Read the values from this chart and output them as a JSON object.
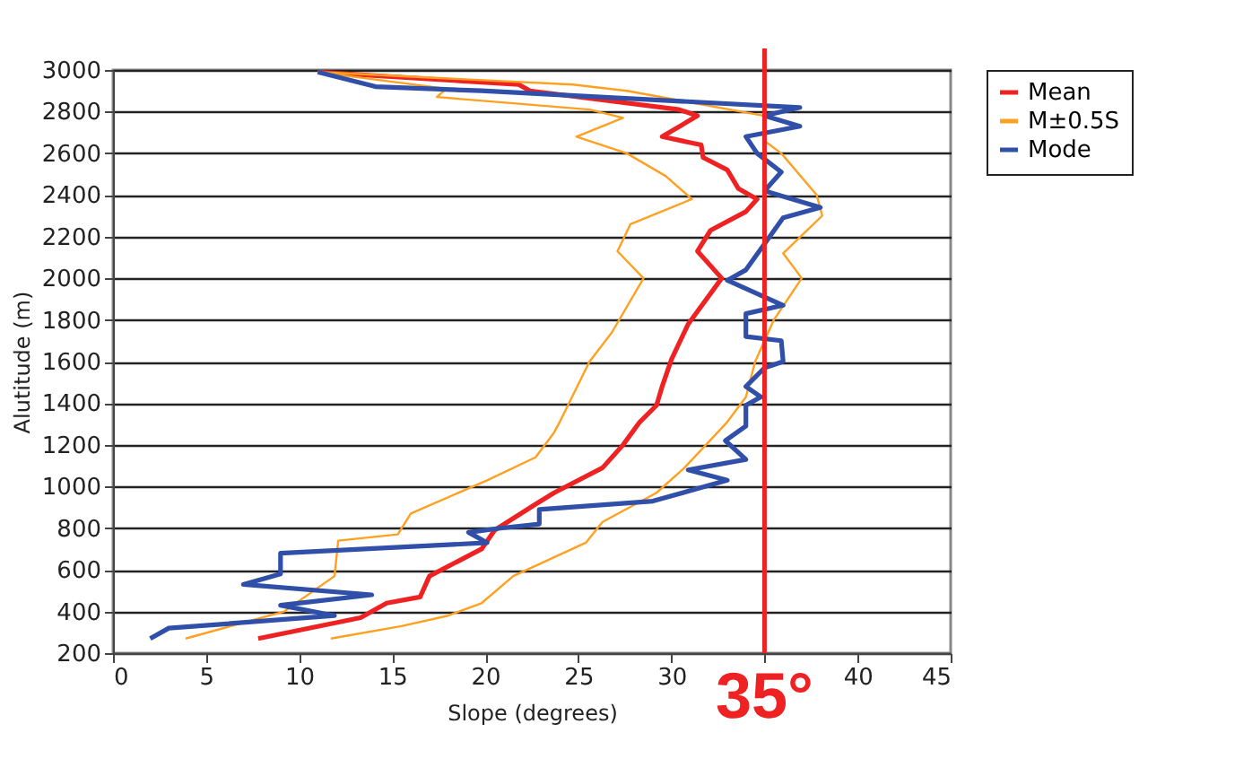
{
  "chart_data": {
    "type": "line",
    "xlabel": "Slope (degrees)",
    "ylabel": "Alutitude (m)",
    "xlim": [
      0,
      45
    ],
    "xticks": [
      0,
      5,
      10,
      15,
      20,
      25,
      30,
      {
        "value": 35,
        "label": null
      },
      40,
      45
    ],
    "ylim": [
      200,
      3000
    ],
    "yticks": [
      200,
      400,
      600,
      800,
      1000,
      1200,
      1400,
      1600,
      1800,
      2000,
      2200,
      2400,
      2600,
      2800,
      3000
    ],
    "grid": "y",
    "legend": "right",
    "marker": "none",
    "line_style": "solid",
    "ref_lines": [
      {
        "axis": "x",
        "value": 35,
        "label": "35°",
        "color": "#ee2222"
      }
    ],
    "series": [
      {
        "name": "Mean",
        "color": "#ee2222",
        "x": [
          7.8,
          13.3,
          14.7,
          16.5,
          17.0,
          19.8,
          20.5,
          22.7,
          23.7,
          26.3,
          27.4,
          28.3,
          29.2,
          29.5,
          30.0,
          30.9,
          32.7,
          31.4,
          32.1,
          34.0,
          34.6,
          33.6,
          33.0,
          31.7,
          31.6,
          29.5,
          31.4,
          30.4,
          22.4,
          21.8,
          11.0
        ],
        "values": [
          270,
          370,
          440,
          470,
          570,
          700,
          790,
          915,
          970,
          1090,
          1200,
          1310,
          1390,
          1480,
          1610,
          1780,
          2000,
          2130,
          2230,
          2320,
          2380,
          2430,
          2520,
          2580,
          2640,
          2680,
          2780,
          2810,
          2900,
          2930,
          2990
        ]
      },
      {
        "name": "M±0.5S",
        "color": "#ffa020",
        "x": [
          11.7,
          15.5,
          18.0,
          19.8,
          21.5,
          25.4,
          26.3,
          29.2,
          30.7,
          33.0,
          34.0,
          34.5,
          35.5,
          37.0,
          36.0,
          38.1,
          37.8,
          35.9,
          35.0,
          35.0,
          27.6,
          24.7,
          11.0
        ],
        "values": [
          270,
          330,
          380,
          440,
          570,
          730,
          830,
          970,
          1090,
          1310,
          1430,
          1600,
          1800,
          2000,
          2120,
          2300,
          2400,
          2600,
          2660,
          2780,
          2900,
          2930,
          2990
        ]
      },
      {
        "color": "#ffa020",
        "x": [
          3.9,
          9.2,
          11.9,
          12.1,
          15.3,
          16.0,
          20.1,
          22.7,
          23.7,
          24.0,
          25.6,
          26.8,
          28.5,
          27.1,
          27.8,
          31.1,
          29.7,
          27.6,
          24.9,
          27.4,
          25.6,
          17.4,
          17.9,
          11.0
        ],
        "values": [
          270,
          400,
          570,
          740,
          770,
          870,
          1030,
          1140,
          1260,
          1310,
          1600,
          1740,
          2000,
          2130,
          2260,
          2380,
          2490,
          2600,
          2680,
          2770,
          2810,
          2870,
          2910,
          2990
        ]
      },
      {
        "name": "Mode",
        "color": "#2f4fa8",
        "x": [
          2.0,
          3.0,
          11.9,
          9.0,
          13.9,
          7.0,
          9.0,
          9.0,
          20.1,
          19.1,
          20.8,
          22.9,
          22.9,
          29.0,
          33.0,
          30.9,
          34.0,
          32.9,
          34.0,
          34.0,
          34.8,
          34.0,
          35.0,
          36.0,
          35.9,
          34.0,
          34.0,
          36.0,
          33.0,
          34.0,
          36.0,
          38.0,
          35.0,
          35.9,
          34.6,
          34.0,
          36.9,
          35.0,
          36.9,
          19.8,
          14.1,
          11.0
        ],
        "values": [
          270,
          320,
          380,
          430,
          480,
          530,
          580,
          680,
          730,
          780,
          800,
          820,
          890,
          930,
          1030,
          1080,
          1130,
          1220,
          1290,
          1390,
          1430,
          1480,
          1570,
          1600,
          1700,
          1720,
          1830,
          1870,
          1990,
          2040,
          2290,
          2340,
          2420,
          2510,
          2600,
          2680,
          2730,
          2780,
          2820,
          2900,
          2920,
          2990
        ]
      }
    ]
  }
}
